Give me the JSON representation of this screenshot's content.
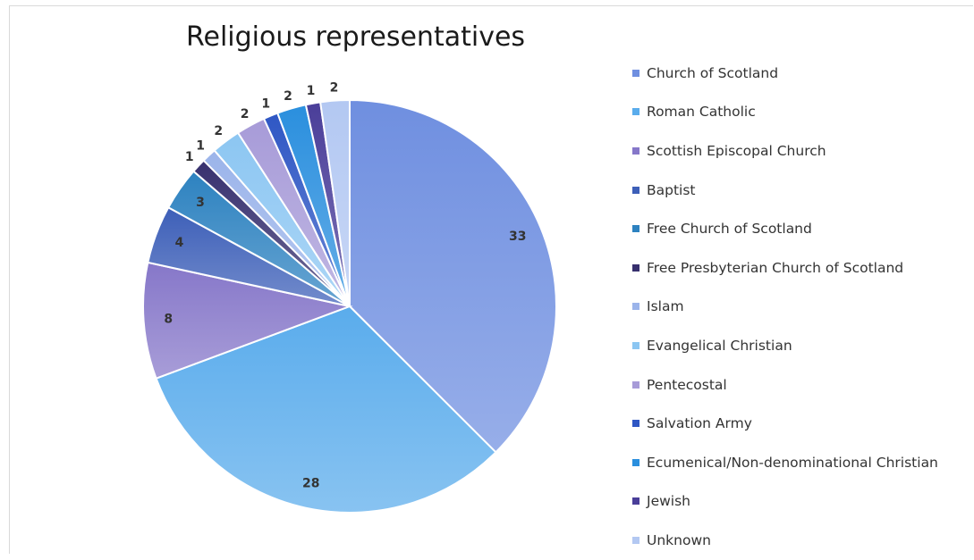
{
  "chart_data": {
    "type": "pie",
    "title": "Religious representatives",
    "legend_position": "right",
    "slices": [
      {
        "label": "Church of Scotland",
        "value": 33,
        "color": "#6f8fe0"
      },
      {
        "label": "Roman Catholic",
        "value": 28,
        "color": "#5aacec"
      },
      {
        "label": "Scottish Episcopal Church",
        "value": 8,
        "color": "#8677c9"
      },
      {
        "label": "Baptist",
        "value": 4,
        "color": "#3d5fb8"
      },
      {
        "label": "Free Church of Scotland",
        "value": 3,
        "color": "#2d82c0"
      },
      {
        "label": "Free Presbyterian Church of Scotland",
        "value": 1,
        "color": "#37306e"
      },
      {
        "label": "Islam",
        "value": 1,
        "color": "#9bb4ea"
      },
      {
        "label": "Evangelical Christian",
        "value": 2,
        "color": "#8cc6f2"
      },
      {
        "label": "Pentecostal",
        "value": 2,
        "color": "#a79bd8"
      },
      {
        "label": "Salvation Army",
        "value": 1,
        "color": "#2f57c4"
      },
      {
        "label": "Ecumenical/Non-denominational Christian",
        "value": 2,
        "color": "#2a8fde"
      },
      {
        "label": "Jewish",
        "value": 1,
        "color": "#4a3e99"
      },
      {
        "label": "Unknown",
        "value": 2,
        "color": "#b3c8f2"
      }
    ]
  }
}
